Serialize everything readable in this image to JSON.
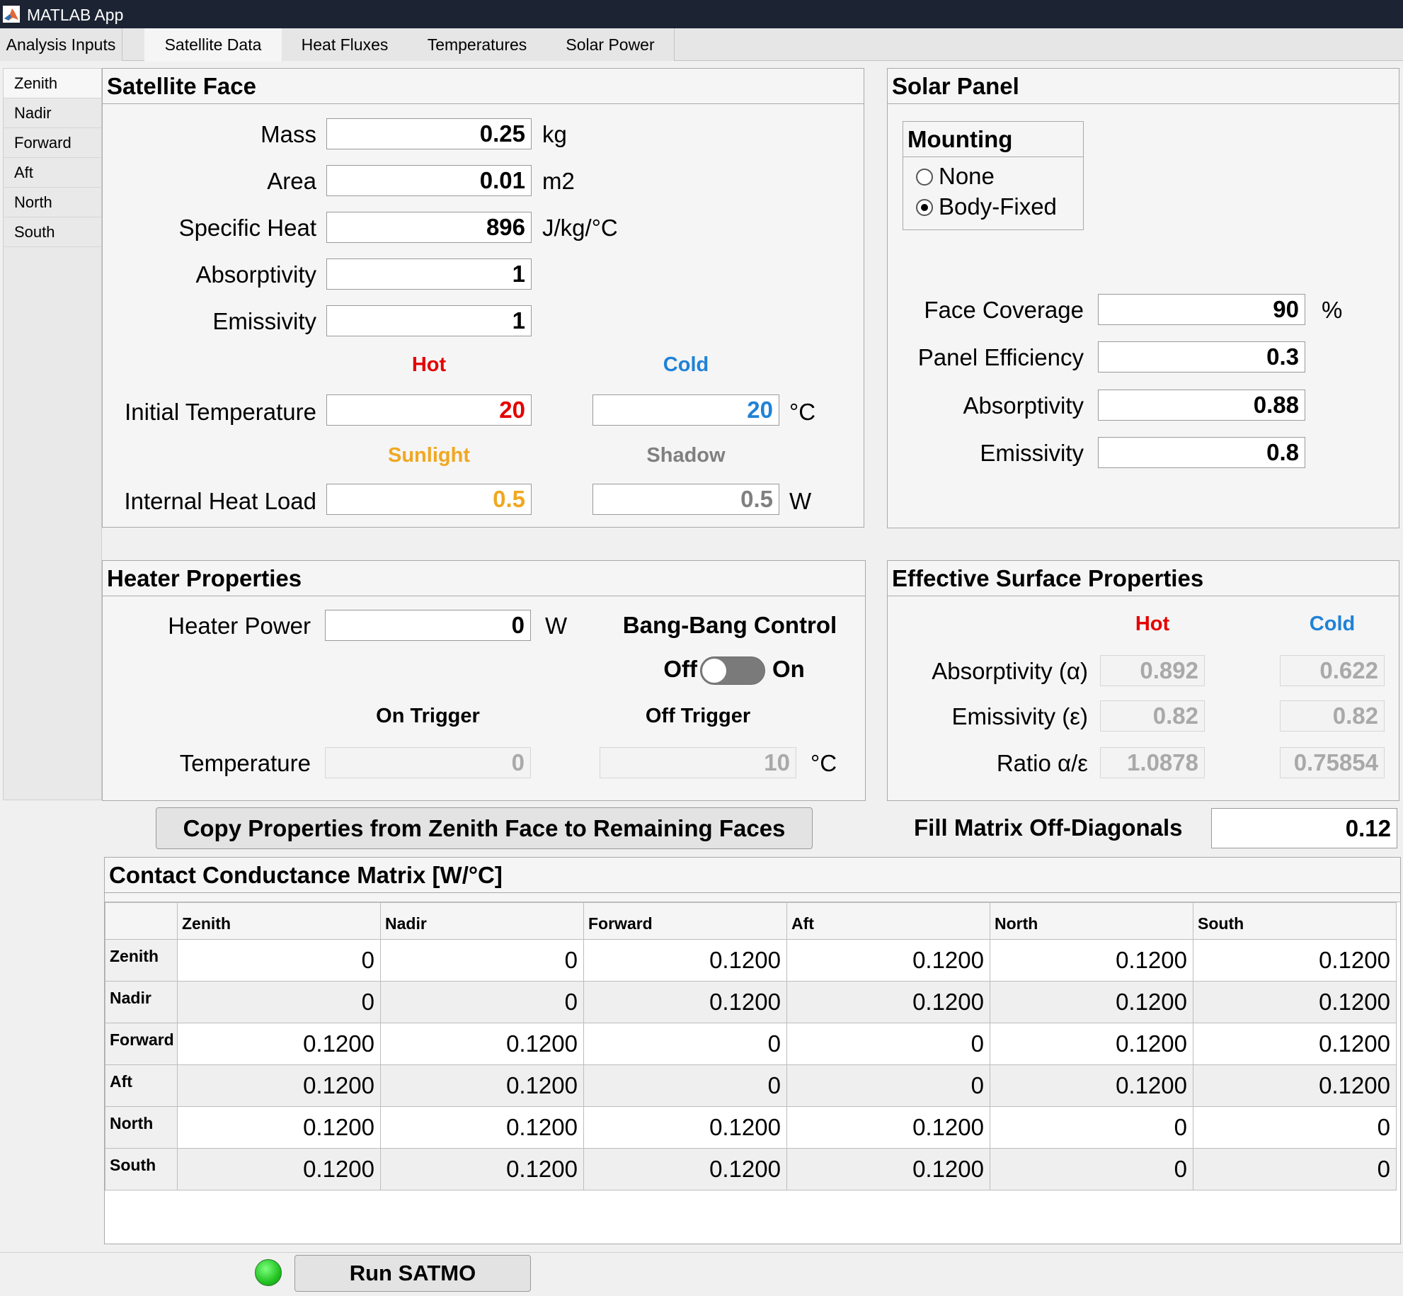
{
  "app": {
    "title": "MATLAB App"
  },
  "tabs": [
    {
      "label": "Analysis Inputs"
    },
    {
      "label": "Satellite Data"
    },
    {
      "label": "Heat Fluxes"
    },
    {
      "label": "Temperatures"
    },
    {
      "label": "Solar Power"
    }
  ],
  "faces": [
    "Zenith",
    "Nadir",
    "Forward",
    "Aft",
    "North",
    "South"
  ],
  "satellite_face": {
    "title": "Satellite Face",
    "mass": {
      "label": "Mass",
      "value": "0.25",
      "unit": "kg"
    },
    "area": {
      "label": "Area",
      "value": "0.01",
      "unit": "m2"
    },
    "specific_heat": {
      "label": "Specific Heat",
      "value": "896",
      "unit": "J/kg/°C"
    },
    "absorptivity": {
      "label": "Absorptivity",
      "value": "1"
    },
    "emissivity": {
      "label": "Emissivity",
      "value": "1"
    },
    "hot_label": "Hot",
    "cold_label": "Cold",
    "initial_temperature": {
      "label": "Initial Temperature",
      "hot": "20",
      "cold": "20",
      "unit": "°C"
    },
    "sunlight_label": "Sunlight",
    "shadow_label": "Shadow",
    "internal_heat_load": {
      "label": "Internal Heat Load",
      "sunlight": "0.5",
      "shadow": "0.5",
      "unit": "W"
    }
  },
  "solar_panel": {
    "title": "Solar Panel",
    "mounting": {
      "title": "Mounting",
      "options": [
        "None",
        "Body-Fixed"
      ],
      "selected": "Body-Fixed"
    },
    "face_coverage": {
      "label": "Face Coverage",
      "value": "90",
      "unit": "%"
    },
    "panel_efficiency": {
      "label": "Panel Efficiency",
      "value": "0.3"
    },
    "absorptivity": {
      "label": "Absorptivity",
      "value": "0.88"
    },
    "emissivity": {
      "label": "Emissivity",
      "value": "0.8"
    }
  },
  "heater": {
    "title": "Heater Properties",
    "power": {
      "label": "Heater Power",
      "value": "0",
      "unit": "W"
    },
    "bang_bang": {
      "label": "Bang-Bang Control",
      "off_label": "Off",
      "on_label": "On",
      "state": "Off"
    },
    "on_trigger_label": "On Trigger",
    "off_trigger_label": "Off Trigger",
    "temperature": {
      "label": "Temperature",
      "on_trigger": "0",
      "off_trigger": "10",
      "unit": "°C"
    }
  },
  "effective_surface": {
    "title": "Effective Surface Properties",
    "hot_label": "Hot",
    "cold_label": "Cold",
    "rows": [
      {
        "label": "Absorptivity (α)",
        "hot": "0.892",
        "cold": "0.622"
      },
      {
        "label": "Emissivity (ε)",
        "hot": "0.82",
        "cold": "0.82"
      },
      {
        "label": "Ratio α/ε",
        "hot": "1.0878",
        "cold": "0.75854"
      }
    ]
  },
  "copy_button": {
    "label": "Copy Properties from Zenith Face to Remaining Faces"
  },
  "fill_matrix": {
    "label": "Fill Matrix Off-Diagonals",
    "value": "0.12"
  },
  "contact_matrix": {
    "title": "Contact Conductance Matrix [W/°C]",
    "columns": [
      "Zenith",
      "Nadir",
      "Forward",
      "Aft",
      "North",
      "South"
    ],
    "rows": [
      {
        "label": "Zenith",
        "values": [
          "0",
          "0",
          "0.1200",
          "0.1200",
          "0.1200",
          "0.1200"
        ]
      },
      {
        "label": "Nadir",
        "values": [
          "0",
          "0",
          "0.1200",
          "0.1200",
          "0.1200",
          "0.1200"
        ]
      },
      {
        "label": "Forward",
        "values": [
          "0.1200",
          "0.1200",
          "0",
          "0",
          "0.1200",
          "0.1200"
        ]
      },
      {
        "label": "Aft",
        "values": [
          "0.1200",
          "0.1200",
          "0",
          "0",
          "0.1200",
          "0.1200"
        ]
      },
      {
        "label": "North",
        "values": [
          "0.1200",
          "0.1200",
          "0.1200",
          "0.1200",
          "0",
          "0"
        ]
      },
      {
        "label": "South",
        "values": [
          "0.1200",
          "0.1200",
          "0.1200",
          "0.1200",
          "0",
          "0"
        ]
      }
    ]
  },
  "run_button": {
    "label": "Run SATMO"
  },
  "colors": {
    "hot": "#e50000",
    "cold": "#1f82d6",
    "sunlight": "#f0a820",
    "shadow": "#808080",
    "status_lamp": "#22c322"
  }
}
